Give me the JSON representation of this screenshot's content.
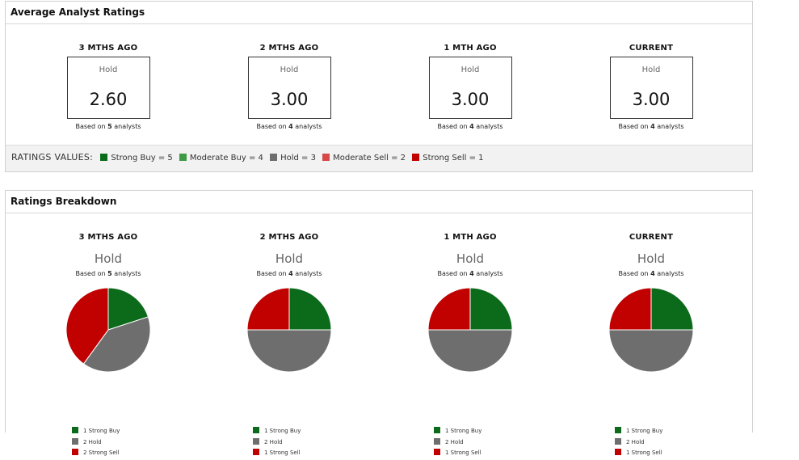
{
  "colors": {
    "strong_buy": "#0b6b1a",
    "moderate_buy": "#3d9a45",
    "hold": "#6e6e6e",
    "moderate_sell": "#d94848",
    "strong_sell": "#c10000"
  },
  "avg_panel": {
    "title": "Average Analyst Ratings",
    "columns": [
      {
        "period": "3 MTHS AGO",
        "rating": "Hold",
        "value": "2.60",
        "based_prefix": "Based on",
        "analysts": "5",
        "based_suffix": "analysts"
      },
      {
        "period": "2 MTHS AGO",
        "rating": "Hold",
        "value": "3.00",
        "based_prefix": "Based on",
        "analysts": "4",
        "based_suffix": "analysts"
      },
      {
        "period": "1 MTH AGO",
        "rating": "Hold",
        "value": "3.00",
        "based_prefix": "Based on",
        "analysts": "4",
        "based_suffix": "analysts"
      },
      {
        "period": "CURRENT",
        "rating": "Hold",
        "value": "3.00",
        "based_prefix": "Based on",
        "analysts": "4",
        "based_suffix": "analysts"
      }
    ],
    "ratings_values": {
      "title": "RATINGS VALUES:",
      "items": [
        {
          "label": "Strong Buy = 5",
          "color": "#0b6b1a"
        },
        {
          "label": "Moderate Buy = 4",
          "color": "#3d9a45"
        },
        {
          "label": "Hold = 3",
          "color": "#6e6e6e"
        },
        {
          "label": "Moderate Sell = 2",
          "color": "#d94848"
        },
        {
          "label": "Strong Sell = 1",
          "color": "#c10000"
        }
      ]
    }
  },
  "breakdown_panel": {
    "title": "Ratings Breakdown"
  },
  "chart_data": [
    {
      "type": "pie",
      "title": "3 MTHS AGO",
      "subtitle": "Hold",
      "note": {
        "prefix": "Based on",
        "count": "5",
        "suffix": "analysts"
      },
      "slices": [
        {
          "label": "Strong Buy",
          "value": 1,
          "legend": "1 Strong Buy",
          "color": "#0b6b1a"
        },
        {
          "label": "Hold",
          "value": 2,
          "legend": "2 Hold",
          "color": "#6e6e6e"
        },
        {
          "label": "Strong Sell",
          "value": 2,
          "legend": "2 Strong Sell",
          "color": "#c10000"
        }
      ]
    },
    {
      "type": "pie",
      "title": "2 MTHS AGO",
      "subtitle": "Hold",
      "note": {
        "prefix": "Based on",
        "count": "4",
        "suffix": "analysts"
      },
      "slices": [
        {
          "label": "Strong Buy",
          "value": 1,
          "legend": "1 Strong Buy",
          "color": "#0b6b1a"
        },
        {
          "label": "Hold",
          "value": 2,
          "legend": "2 Hold",
          "color": "#6e6e6e"
        },
        {
          "label": "Strong Sell",
          "value": 1,
          "legend": "1 Strong Sell",
          "color": "#c10000"
        }
      ]
    },
    {
      "type": "pie",
      "title": "1 MTH AGO",
      "subtitle": "Hold",
      "note": {
        "prefix": "Based on",
        "count": "4",
        "suffix": "analysts"
      },
      "slices": [
        {
          "label": "Strong Buy",
          "value": 1,
          "legend": "1 Strong Buy",
          "color": "#0b6b1a"
        },
        {
          "label": "Hold",
          "value": 2,
          "legend": "2 Hold",
          "color": "#6e6e6e"
        },
        {
          "label": "Strong Sell",
          "value": 1,
          "legend": "1 Strong Sell",
          "color": "#c10000"
        }
      ]
    },
    {
      "type": "pie",
      "title": "CURRENT",
      "subtitle": "Hold",
      "note": {
        "prefix": "Based on",
        "count": "4",
        "suffix": "analysts"
      },
      "slices": [
        {
          "label": "Strong Buy",
          "value": 1,
          "legend": "1 Strong Buy",
          "color": "#0b6b1a"
        },
        {
          "label": "Hold",
          "value": 2,
          "legend": "2 Hold",
          "color": "#6e6e6e"
        },
        {
          "label": "Strong Sell",
          "value": 1,
          "legend": "1 Strong Sell",
          "color": "#c10000"
        }
      ]
    }
  ]
}
